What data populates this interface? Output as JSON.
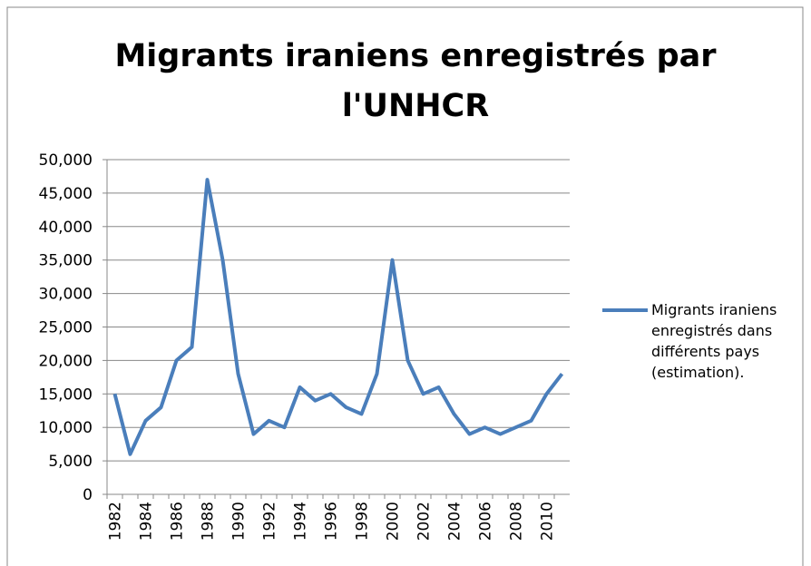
{
  "chart_data": {
    "type": "line",
    "title": [
      "Migrants iraniens enregistrés  par",
      "l'UNHCR"
    ],
    "categories": [
      "1982",
      null,
      "1984",
      null,
      "1986",
      null,
      "1988",
      null,
      "1990",
      null,
      "1992",
      null,
      "1994",
      null,
      "1996",
      null,
      "1998",
      null,
      "2000",
      null,
      "2002",
      null,
      "2004",
      null,
      "2006",
      null,
      "2008",
      null,
      "2010",
      null
    ],
    "series": [
      {
        "name": "Migrants iraniens enregistrés dans différents pays (estimation).",
        "color": "#4a7ebb",
        "values": [
          15000,
          6000,
          11000,
          13000,
          20000,
          22000,
          47000,
          35000,
          18000,
          9000,
          11000,
          10000,
          16000,
          14000,
          15000,
          13000,
          12000,
          18000,
          35000,
          20000,
          15000,
          16000,
          12000,
          9000,
          10000,
          9000,
          10000,
          11000,
          15000,
          18000
        ]
      }
    ],
    "ylim": [
      0,
      50000
    ],
    "yticks": [
      0,
      {
        "value": 5000,
        "label": "5,000"
      },
      {
        "value": 10000,
        "label": "10,000"
      },
      {
        "value": 15000,
        "label": "15,000"
      },
      {
        "value": 20000,
        "label": "20,000"
      },
      {
        "value": 25000,
        "label": "25,000"
      },
      {
        "value": 30000,
        "label": "30,000"
      },
      {
        "value": 35000,
        "label": "35,000"
      },
      {
        "value": 40000,
        "label": "40,000"
      },
      {
        "value": 45000,
        "label": "45,000"
      },
      {
        "value": 50000,
        "label": "50,000"
      }
    ],
    "grid": true,
    "legend": "right"
  }
}
